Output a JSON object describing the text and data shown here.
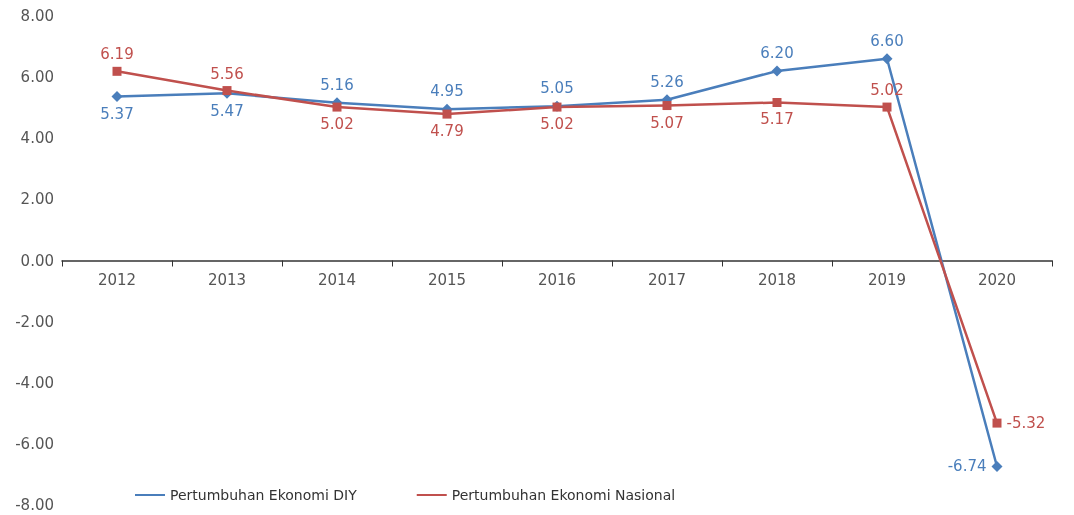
{
  "chart_data": {
    "type": "line",
    "categories": [
      "2012",
      "2013",
      "2014",
      "2015",
      "2016",
      "2017",
      "2018",
      "2019",
      "2020"
    ],
    "series": [
      {
        "name": "Pertumbuhan Ekonomi DIY",
        "color": "#4a7ebb",
        "marker": "diamond",
        "values": [
          5.37,
          5.47,
          5.16,
          4.95,
          5.05,
          5.26,
          6.2,
          6.6,
          -6.74
        ],
        "value_labels": [
          "5.37",
          "5.47",
          "5.16",
          "4.95",
          "5.05",
          "5.26",
          "6.20",
          "6.60",
          "-6.74"
        ]
      },
      {
        "name": "Pertumbuhan Ekonomi Nasional",
        "color": "#c0504d",
        "marker": "square",
        "values": [
          6.19,
          5.56,
          5.02,
          4.79,
          5.02,
          5.07,
          5.17,
          5.02,
          -5.32
        ],
        "value_labels": [
          "6.19",
          "5.56",
          "5.02",
          "4.79",
          "5.02",
          "5.07",
          "5.17",
          "5.02",
          "-5.32"
        ]
      }
    ],
    "ylim": [
      -8,
      8
    ],
    "yticks": [
      {
        "value": -8,
        "label": "-8.00"
      },
      {
        "value": -6,
        "label": "-6.00"
      },
      {
        "value": -4,
        "label": "-4.00"
      },
      {
        "value": -2,
        "label": "-2.00"
      },
      {
        "value": 0,
        "label": "0.00"
      },
      {
        "value": 2,
        "label": "2.00"
      },
      {
        "value": 4,
        "label": "4.00"
      },
      {
        "value": 6,
        "label": "6.00"
      },
      {
        "value": 8,
        "label": "8.00"
      }
    ],
    "grid": false,
    "legend": "bottom",
    "line_style": "solid"
  }
}
